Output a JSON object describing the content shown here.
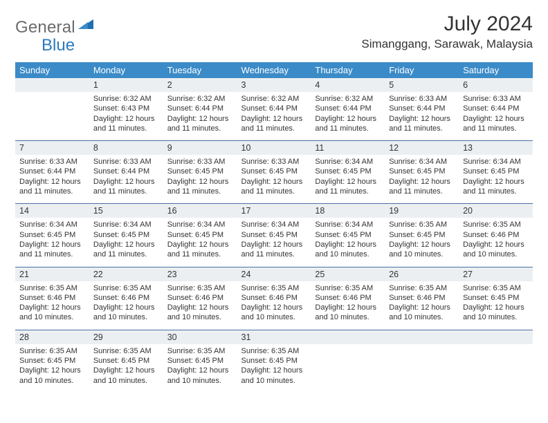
{
  "brand": {
    "part1": "General",
    "part2": "Blue"
  },
  "title": "July 2024",
  "location": "Simanggang, Sarawak, Malaysia",
  "colors": {
    "header_bg": "#3b8bc8",
    "header_fg": "#ffffff",
    "daynum_bg": "#eceff2",
    "rule": "#4a6fa0",
    "text": "#333333",
    "logo_gray": "#6b6b6b",
    "logo_blue": "#2b7bbd"
  },
  "dows": [
    "Sunday",
    "Monday",
    "Tuesday",
    "Wednesday",
    "Thursday",
    "Friday",
    "Saturday"
  ],
  "weeks": [
    [
      null,
      {
        "n": "1",
        "sr": "6:32 AM",
        "ss": "6:43 PM",
        "dl": "12 hours and 11 minutes."
      },
      {
        "n": "2",
        "sr": "6:32 AM",
        "ss": "6:44 PM",
        "dl": "12 hours and 11 minutes."
      },
      {
        "n": "3",
        "sr": "6:32 AM",
        "ss": "6:44 PM",
        "dl": "12 hours and 11 minutes."
      },
      {
        "n": "4",
        "sr": "6:32 AM",
        "ss": "6:44 PM",
        "dl": "12 hours and 11 minutes."
      },
      {
        "n": "5",
        "sr": "6:33 AM",
        "ss": "6:44 PM",
        "dl": "12 hours and 11 minutes."
      },
      {
        "n": "6",
        "sr": "6:33 AM",
        "ss": "6:44 PM",
        "dl": "12 hours and 11 minutes."
      }
    ],
    [
      {
        "n": "7",
        "sr": "6:33 AM",
        "ss": "6:44 PM",
        "dl": "12 hours and 11 minutes."
      },
      {
        "n": "8",
        "sr": "6:33 AM",
        "ss": "6:44 PM",
        "dl": "12 hours and 11 minutes."
      },
      {
        "n": "9",
        "sr": "6:33 AM",
        "ss": "6:45 PM",
        "dl": "12 hours and 11 minutes."
      },
      {
        "n": "10",
        "sr": "6:33 AM",
        "ss": "6:45 PM",
        "dl": "12 hours and 11 minutes."
      },
      {
        "n": "11",
        "sr": "6:34 AM",
        "ss": "6:45 PM",
        "dl": "12 hours and 11 minutes."
      },
      {
        "n": "12",
        "sr": "6:34 AM",
        "ss": "6:45 PM",
        "dl": "12 hours and 11 minutes."
      },
      {
        "n": "13",
        "sr": "6:34 AM",
        "ss": "6:45 PM",
        "dl": "12 hours and 11 minutes."
      }
    ],
    [
      {
        "n": "14",
        "sr": "6:34 AM",
        "ss": "6:45 PM",
        "dl": "12 hours and 11 minutes."
      },
      {
        "n": "15",
        "sr": "6:34 AM",
        "ss": "6:45 PM",
        "dl": "12 hours and 11 minutes."
      },
      {
        "n": "16",
        "sr": "6:34 AM",
        "ss": "6:45 PM",
        "dl": "12 hours and 11 minutes."
      },
      {
        "n": "17",
        "sr": "6:34 AM",
        "ss": "6:45 PM",
        "dl": "12 hours and 11 minutes."
      },
      {
        "n": "18",
        "sr": "6:34 AM",
        "ss": "6:45 PM",
        "dl": "12 hours and 10 minutes."
      },
      {
        "n": "19",
        "sr": "6:35 AM",
        "ss": "6:45 PM",
        "dl": "12 hours and 10 minutes."
      },
      {
        "n": "20",
        "sr": "6:35 AM",
        "ss": "6:46 PM",
        "dl": "12 hours and 10 minutes."
      }
    ],
    [
      {
        "n": "21",
        "sr": "6:35 AM",
        "ss": "6:46 PM",
        "dl": "12 hours and 10 minutes."
      },
      {
        "n": "22",
        "sr": "6:35 AM",
        "ss": "6:46 PM",
        "dl": "12 hours and 10 minutes."
      },
      {
        "n": "23",
        "sr": "6:35 AM",
        "ss": "6:46 PM",
        "dl": "12 hours and 10 minutes."
      },
      {
        "n": "24",
        "sr": "6:35 AM",
        "ss": "6:46 PM",
        "dl": "12 hours and 10 minutes."
      },
      {
        "n": "25",
        "sr": "6:35 AM",
        "ss": "6:46 PM",
        "dl": "12 hours and 10 minutes."
      },
      {
        "n": "26",
        "sr": "6:35 AM",
        "ss": "6:46 PM",
        "dl": "12 hours and 10 minutes."
      },
      {
        "n": "27",
        "sr": "6:35 AM",
        "ss": "6:45 PM",
        "dl": "12 hours and 10 minutes."
      }
    ],
    [
      {
        "n": "28",
        "sr": "6:35 AM",
        "ss": "6:45 PM",
        "dl": "12 hours and 10 minutes."
      },
      {
        "n": "29",
        "sr": "6:35 AM",
        "ss": "6:45 PM",
        "dl": "12 hours and 10 minutes."
      },
      {
        "n": "30",
        "sr": "6:35 AM",
        "ss": "6:45 PM",
        "dl": "12 hours and 10 minutes."
      },
      {
        "n": "31",
        "sr": "6:35 AM",
        "ss": "6:45 PM",
        "dl": "12 hours and 10 minutes."
      },
      null,
      null,
      null
    ]
  ],
  "labels": {
    "sunrise": "Sunrise:",
    "sunset": "Sunset:",
    "daylight": "Daylight:"
  }
}
